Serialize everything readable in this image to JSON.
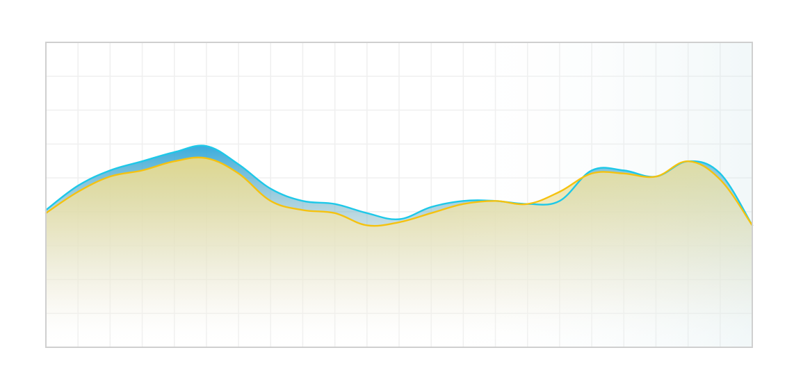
{
  "chart_data": {
    "type": "area",
    "title": "",
    "xlabel": "",
    "ylabel": "",
    "x": [
      0,
      1,
      2,
      3,
      4,
      5,
      6,
      7,
      8,
      9,
      10,
      11,
      12,
      13,
      14,
      15,
      16,
      17,
      18,
      19,
      20,
      21,
      22
    ],
    "xlim": [
      0,
      22
    ],
    "ylim": [
      0,
      100
    ],
    "grid": true,
    "legend": "none",
    "series": [
      {
        "color": "#1ec8e8",
        "fill_top": "#2fa7db",
        "values": [
          45,
          53,
          58,
          61,
          64,
          66,
          60,
          52,
          48,
          47,
          44,
          42,
          46,
          48,
          48,
          47,
          48,
          58,
          58,
          56,
          61,
          57,
          40
        ]
      },
      {
        "color": "#f5c20f",
        "fill_top": "#e7d98a",
        "values": [
          44,
          51,
          56,
          58,
          61,
          62,
          57,
          48,
          45,
          44,
          40,
          41,
          44,
          47,
          48,
          47,
          51,
          57,
          57,
          56,
          61,
          55,
          40
        ]
      }
    ]
  }
}
